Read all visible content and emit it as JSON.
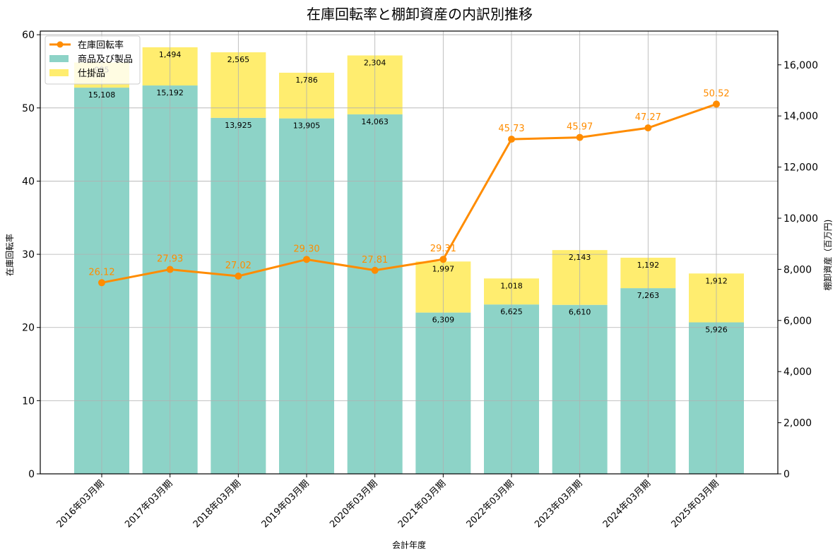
{
  "chart_data": {
    "type": "bar",
    "subtype": "stacked-bar-with-line-secondary",
    "title": "在庫回転率と棚卸資産の内訳別推移",
    "xlabel": "会計年度",
    "ylabel_left": "在庫回転率",
    "ylabel_right": "棚卸資産（百万円)",
    "categories": [
      "2016年03月期",
      "2017年03月期",
      "2018年03月期",
      "2019年03月期",
      "2020年03月期",
      "2021年03月期",
      "2022年03月期",
      "2023年03月期",
      "2024年03月期",
      "2025年03月期"
    ],
    "series": [
      {
        "name": "商品及び製品",
        "type": "bar",
        "axis": "right",
        "color": "#8dd3c7",
        "values": [
          15108,
          15192,
          13925,
          13905,
          14063,
          6309,
          6625,
          6610,
          7263,
          5926
        ],
        "labels": [
          "15,108",
          "15,192",
          "13,925",
          "13,905",
          "14,063",
          "6,309",
          "6,625",
          "6,610",
          "7,263",
          "5,926"
        ]
      },
      {
        "name": "仕掛品",
        "type": "bar",
        "axis": "right",
        "color": "#ffed6f",
        "values": [
          985,
          1494,
          2565,
          1786,
          2304,
          1997,
          1018,
          2143,
          1192,
          1912
        ],
        "labels": [
          "985",
          "1,494",
          "2,565",
          "1,786",
          "2,304",
          "1,997",
          "1,018",
          "2,143",
          "1,192",
          "1,912"
        ]
      },
      {
        "name": "在庫回転率",
        "type": "line",
        "axis": "left",
        "color": "#ff8c00",
        "values": [
          26.12,
          27.93,
          27.02,
          29.3,
          27.81,
          29.31,
          45.73,
          45.97,
          47.27,
          50.52
        ],
        "labels": [
          "26.12",
          "27.93",
          "27.02",
          "29.30",
          "27.81",
          "29.31",
          "45.73",
          "45.97",
          "47.27",
          "50.52"
        ]
      }
    ],
    "ylim_left": [
      0,
      60.5
    ],
    "ylim_right": [
      0,
      17320
    ],
    "yticks_left": [
      "0",
      "10",
      "20",
      "30",
      "40",
      "50",
      "60"
    ],
    "yticks_right": [
      "0",
      "2,000",
      "4,000",
      "6,000",
      "8,000",
      "10,000",
      "12,000",
      "14,000",
      "16,000"
    ],
    "grid": true,
    "legend_position": "upper left",
    "legend": [
      "在庫回転率",
      "商品及び製品",
      "仕掛品"
    ]
  }
}
